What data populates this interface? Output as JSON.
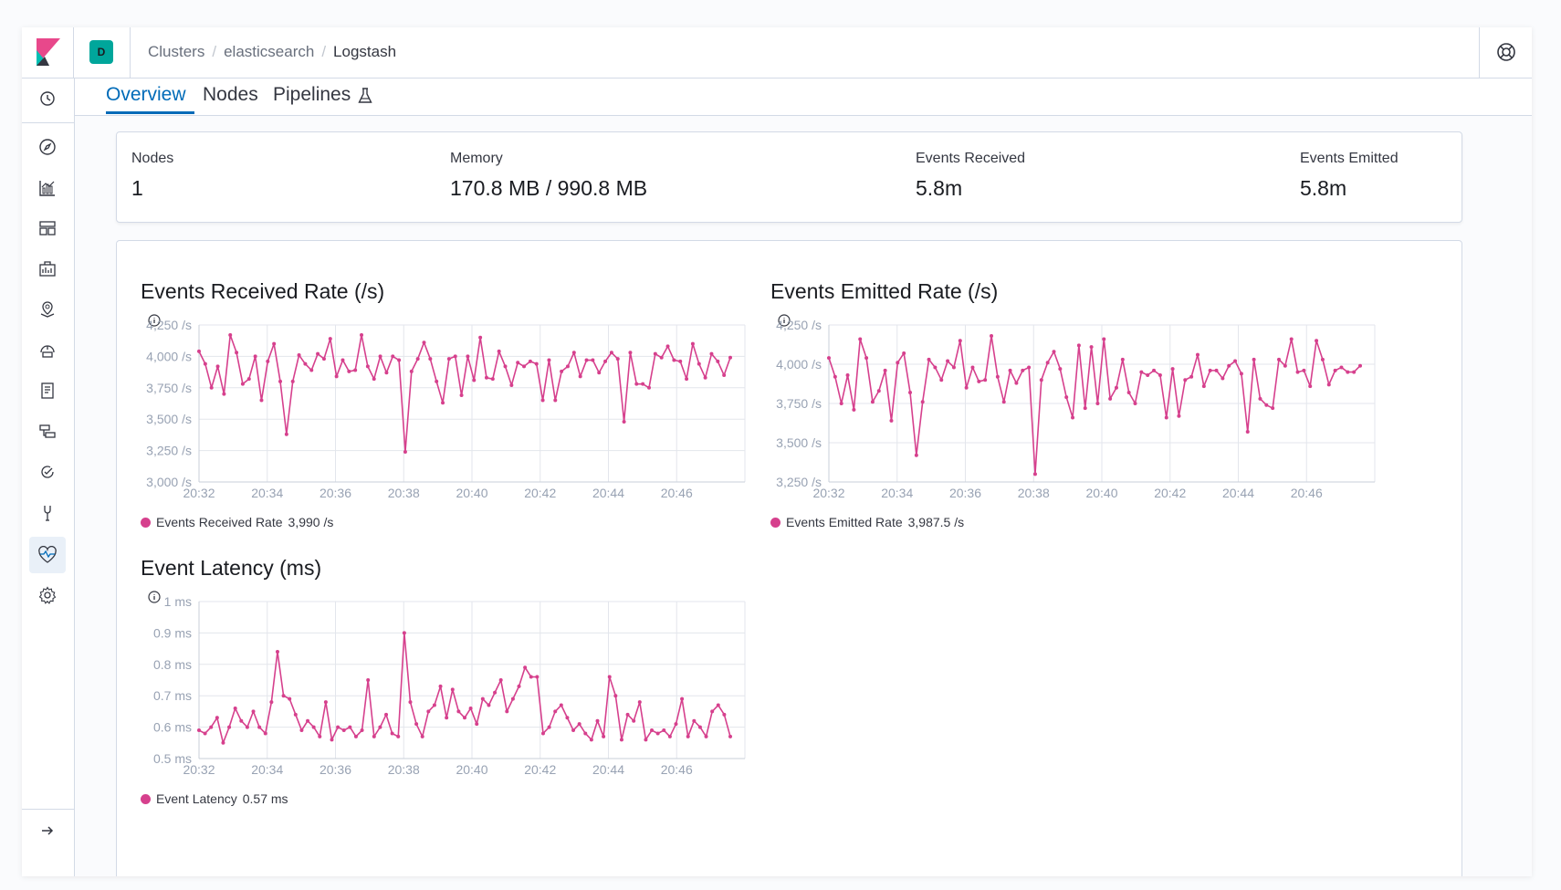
{
  "header": {
    "space_initial": "D",
    "breadcrumbs": [
      "Clusters",
      "elasticsearch",
      "Logstash"
    ],
    "separator": "/"
  },
  "sidebar": {
    "items": [
      "clock-icon",
      "discover-icon",
      "visualize-icon",
      "dashboard-icon",
      "canvas-icon",
      "maps-icon",
      "infrastructure-icon",
      "logs-icon",
      "apm-icon",
      "uptime-icon",
      "dev-tools-icon",
      "monitoring-icon",
      "management-icon"
    ],
    "active": "monitoring-icon"
  },
  "tabs": [
    {
      "label": "Overview",
      "active": true
    },
    {
      "label": "Nodes",
      "active": false
    },
    {
      "label": "Pipelines",
      "active": false
    }
  ],
  "summary": {
    "nodes": {
      "title": "Nodes",
      "value": "1"
    },
    "memory": {
      "title": "Memory",
      "value": "170.8 MB / 990.8 MB"
    },
    "events_received": {
      "title": "Events Received",
      "value": "5.8m"
    },
    "events_emitted": {
      "title": "Events Emitted",
      "value": "5.8m"
    }
  },
  "colors": {
    "series": "#d6408d",
    "accent": "#006bb8"
  },
  "chart_data": [
    {
      "type": "line",
      "title": "Events Received Rate (/s)",
      "ylim": [
        3000,
        4250
      ],
      "yticks": [
        "4,250 /s",
        "4,000 /s",
        "3,750 /s",
        "3,500 /s",
        "3,250 /s",
        "3,000 /s"
      ],
      "xticks": [
        "20:32",
        "20:34",
        "20:36",
        "20:38",
        "20:40",
        "20:42",
        "20:44",
        "20:46"
      ],
      "legend": {
        "name": "Events Received Rate",
        "value": "3,990 /s"
      },
      "series": [
        {
          "name": "Events Received Rate",
          "values": [
            4040,
            3940,
            3750,
            3920,
            3700,
            4170,
            4030,
            3780,
            3820,
            4000,
            3650,
            3960,
            4100,
            3800,
            3380,
            3800,
            4010,
            3940,
            3890,
            4020,
            3980,
            4140,
            3840,
            3970,
            3880,
            3890,
            4170,
            3920,
            3820,
            4000,
            3870,
            4000,
            3970,
            3240,
            3880,
            3980,
            4110,
            3980,
            3800,
            3630,
            3980,
            4000,
            3690,
            4000,
            3810,
            4150,
            3830,
            3820,
            4040,
            3920,
            3770,
            3950,
            3920,
            3960,
            3940,
            3650,
            3970,
            3650,
            3880,
            3920,
            4030,
            3840,
            3970,
            3970,
            3870,
            3960,
            4030,
            3980,
            3480,
            4030,
            3780,
            3780,
            3750,
            4020,
            3990,
            4080,
            3970,
            3960,
            3820,
            4100,
            3940,
            3830,
            4020,
            3960,
            3850,
            3990
          ]
        }
      ]
    },
    {
      "type": "line",
      "title": "Events Emitted Rate (/s)",
      "ylim": [
        3250,
        4250
      ],
      "yticks": [
        "4,250 /s",
        "4,000 /s",
        "3,750 /s",
        "3,500 /s",
        "3,250 /s"
      ],
      "xticks": [
        "20:32",
        "20:34",
        "20:36",
        "20:38",
        "20:40",
        "20:42",
        "20:44",
        "20:46"
      ],
      "legend": {
        "name": "Events Emitted Rate",
        "value": "3,987.5 /s"
      },
      "series": [
        {
          "name": "Events Emitted Rate",
          "values": [
            4040,
            3920,
            3750,
            3930,
            3710,
            4160,
            4040,
            3760,
            3830,
            3960,
            3640,
            4010,
            4070,
            3820,
            3420,
            3760,
            4030,
            3980,
            3900,
            4020,
            3980,
            4150,
            3850,
            3980,
            3890,
            3900,
            4180,
            3920,
            3760,
            3960,
            3880,
            3960,
            3980,
            3300,
            3900,
            4010,
            4080,
            3970,
            3790,
            3660,
            4120,
            3720,
            4110,
            3750,
            4160,
            3780,
            3850,
            4030,
            3820,
            3750,
            3950,
            3930,
            3960,
            3930,
            3660,
            3970,
            3670,
            3900,
            3920,
            4060,
            3860,
            3960,
            3960,
            3910,
            3990,
            4020,
            3940,
            3570,
            4030,
            3780,
            3740,
            3720,
            4030,
            3990,
            4160,
            3950,
            3960,
            3860,
            4150,
            4030,
            3870,
            3960,
            3980,
            3950,
            3950,
            3990
          ]
        }
      ]
    },
    {
      "type": "line",
      "title": "Event Latency (ms)",
      "ylim": [
        0.5,
        1.0
      ],
      "yticks": [
        "1 ms",
        "0.9 ms",
        "0.8 ms",
        "0.7 ms",
        "0.6 ms",
        "0.5 ms"
      ],
      "xticks": [
        "20:32",
        "20:34",
        "20:36",
        "20:38",
        "20:40",
        "20:42",
        "20:44",
        "20:46"
      ],
      "legend": {
        "name": "Event Latency",
        "value": "0.57 ms"
      },
      "series": [
        {
          "name": "Event Latency",
          "values": [
            0.59,
            0.58,
            0.6,
            0.63,
            0.55,
            0.6,
            0.66,
            0.62,
            0.6,
            0.65,
            0.6,
            0.58,
            0.68,
            0.84,
            0.7,
            0.69,
            0.64,
            0.59,
            0.62,
            0.6,
            0.57,
            0.68,
            0.56,
            0.6,
            0.59,
            0.6,
            0.57,
            0.59,
            0.75,
            0.57,
            0.6,
            0.64,
            0.58,
            0.57,
            0.9,
            0.68,
            0.61,
            0.57,
            0.65,
            0.67,
            0.73,
            0.63,
            0.72,
            0.65,
            0.63,
            0.66,
            0.61,
            0.69,
            0.67,
            0.71,
            0.75,
            0.65,
            0.69,
            0.73,
            0.79,
            0.76,
            0.76,
            0.58,
            0.6,
            0.65,
            0.67,
            0.63,
            0.59,
            0.61,
            0.58,
            0.56,
            0.62,
            0.57,
            0.76,
            0.7,
            0.56,
            0.64,
            0.62,
            0.68,
            0.56,
            0.59,
            0.58,
            0.59,
            0.57,
            0.61,
            0.69,
            0.57,
            0.62,
            0.6,
            0.57,
            0.65,
            0.67,
            0.64,
            0.57
          ]
        }
      ]
    }
  ]
}
